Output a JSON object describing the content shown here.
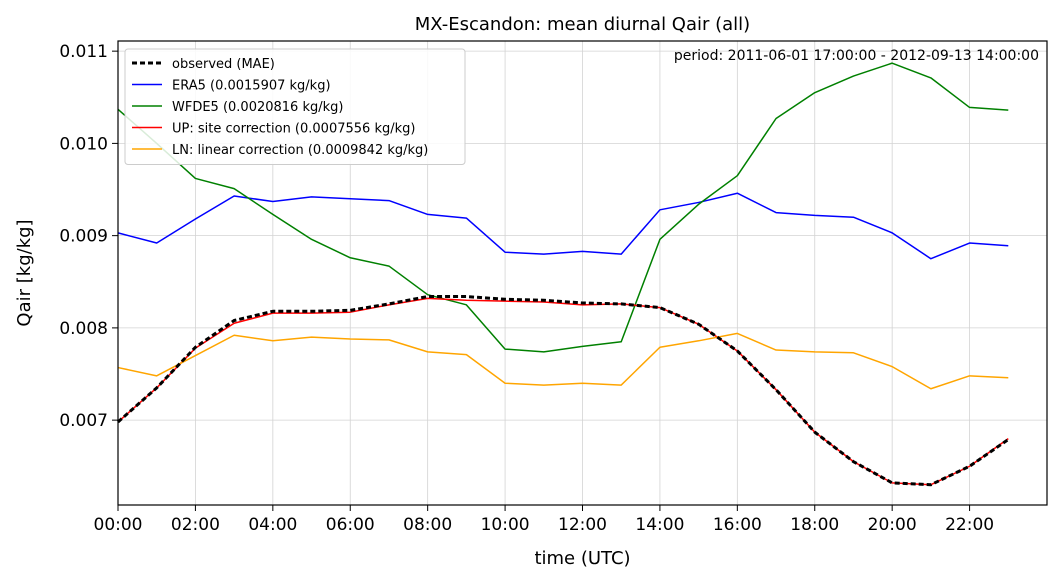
{
  "chart_data": {
    "type": "line",
    "title": "MX-Escandon: mean diurnal Qair (all)",
    "xlabel": "time (UTC)",
    "ylabel": "Qair [kg/kg]",
    "annotation": "period: 2011-06-01 17:00:00 - 2012-09-13 14:00:00",
    "xlim": [
      0,
      24
    ],
    "ylim": [
      0.00608,
      0.01111
    ],
    "x_ticks": [
      0,
      2,
      4,
      6,
      8,
      10,
      12,
      14,
      16,
      18,
      20,
      22
    ],
    "x_tick_labels": [
      "00:00",
      "02:00",
      "04:00",
      "06:00",
      "08:00",
      "10:00",
      "12:00",
      "14:00",
      "16:00",
      "18:00",
      "20:00",
      "22:00"
    ],
    "y_ticks": [
      0.007,
      0.008,
      0.009,
      0.01,
      0.011
    ],
    "y_tick_labels": [
      "0.007",
      "0.008",
      "0.009",
      "0.010",
      "0.011"
    ],
    "grid": true,
    "legend_position": "upper-left",
    "x": [
      0,
      1,
      2,
      3,
      4,
      5,
      6,
      7,
      8,
      9,
      10,
      11,
      12,
      13,
      14,
      15,
      16,
      17,
      18,
      19,
      20,
      21,
      22,
      23
    ],
    "series": [
      {
        "name": "observed (MAE)",
        "color": "#000000",
        "dashed": true,
        "values": [
          0.00698,
          0.00735,
          0.00779,
          0.00808,
          0.00818,
          0.00818,
          0.00819,
          0.00826,
          0.00834,
          0.00834,
          0.00831,
          0.0083,
          0.00827,
          0.00826,
          0.00822,
          0.00804,
          0.00775,
          0.00733,
          0.00687,
          0.00655,
          0.00632,
          0.0063,
          0.0065,
          0.00679
        ]
      },
      {
        "name": "ERA5 (0.0015907 kg/kg)",
        "color": "#0000ff",
        "values": [
          0.00903,
          0.00892,
          0.00918,
          0.00943,
          0.00937,
          0.00942,
          0.0094,
          0.00938,
          0.00923,
          0.00919,
          0.00882,
          0.0088,
          0.00883,
          0.0088,
          0.00928,
          0.00936,
          0.00946,
          0.00925,
          0.00922,
          0.0092,
          0.00903,
          0.00875,
          0.00892,
          0.00889
        ]
      },
      {
        "name": "WFDE5 (0.0020816 kg/kg)",
        "color": "#008000",
        "values": [
          0.01037,
          0.01,
          0.00962,
          0.00951,
          0.00923,
          0.00896,
          0.00876,
          0.00867,
          0.00836,
          0.00825,
          0.00777,
          0.00774,
          0.0078,
          0.00785,
          0.00896,
          0.00934,
          0.00965,
          0.01027,
          0.01055,
          0.01073,
          0.01087,
          0.01071,
          0.01039,
          0.01036
        ]
      },
      {
        "name": "UP: site correction (0.0007556 kg/kg)",
        "color": "#ff0000",
        "values": [
          0.00698,
          0.00735,
          0.00778,
          0.00805,
          0.00816,
          0.00816,
          0.00817,
          0.00825,
          0.00832,
          0.0083,
          0.00829,
          0.00828,
          0.00825,
          0.00826,
          0.00822,
          0.00804,
          0.00775,
          0.00733,
          0.00687,
          0.00655,
          0.00632,
          0.0063,
          0.0065,
          0.0068
        ]
      },
      {
        "name": "LN: linear correction (0.0009842 kg/kg)",
        "color": "#ffa500",
        "values": [
          0.00757,
          0.00748,
          0.0077,
          0.00792,
          0.00786,
          0.0079,
          0.00788,
          0.00787,
          0.00774,
          0.00771,
          0.0074,
          0.00738,
          0.0074,
          0.00738,
          0.00779,
          0.00786,
          0.00794,
          0.00776,
          0.00774,
          0.00773,
          0.00758,
          0.00734,
          0.00748,
          0.00746
        ]
      }
    ]
  }
}
